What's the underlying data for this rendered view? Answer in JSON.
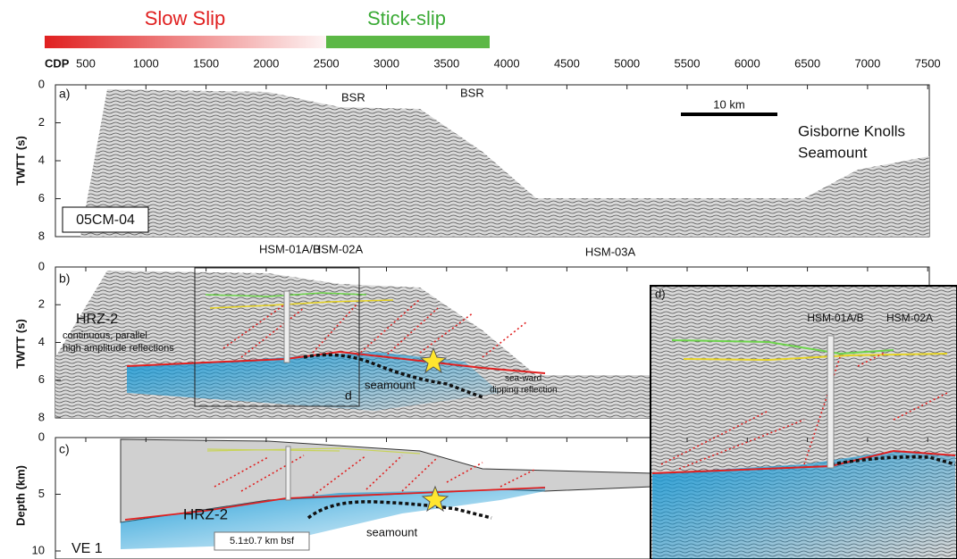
{
  "header": {
    "slow_slip": "Slow Slip",
    "stick_slip": "Stick-slip",
    "cdp_label": "CDP",
    "cdp_ticks": [
      500,
      1000,
      1500,
      2000,
      2500,
      3000,
      3500,
      4000,
      4500,
      5000,
      5500,
      6000,
      6500,
      7000,
      7500
    ]
  },
  "panel_a": {
    "label": "a)",
    "axis_label": "TWTT (s)",
    "yticks": [
      0,
      2,
      4,
      6,
      8
    ],
    "bsr_1": "BSR",
    "bsr_2": "BSR",
    "scale": "10 km",
    "site": [
      "Gisborne Knolls",
      "Seamount"
    ],
    "line_id": "05CM-04"
  },
  "panel_b": {
    "label": "b)",
    "axis_label": "TWTT (s)",
    "yticks": [
      0,
      2,
      4,
      6,
      8
    ],
    "wells": [
      "HSM-01A/B",
      "HSM-02A",
      "HSM-03A"
    ],
    "horizon": "HRZ-2",
    "horizon_note": [
      "continuous, parallel",
      "high amplitude reflections"
    ],
    "seamount": "seamount",
    "dipping_note": [
      "sea-ward",
      "dipping reflection"
    ],
    "box_label": "d"
  },
  "panel_c": {
    "label": "c)",
    "axis_label": "Depth (km)",
    "yticks": [
      0,
      5,
      10
    ],
    "horizon": "HRZ-2",
    "depth_note": "5.1±0.7 km bsf",
    "ve": "VE 1",
    "seamount": "seamount"
  },
  "panel_d": {
    "label": "d)",
    "wells": [
      "HSM-01A/B",
      "HSM-02A"
    ]
  }
}
